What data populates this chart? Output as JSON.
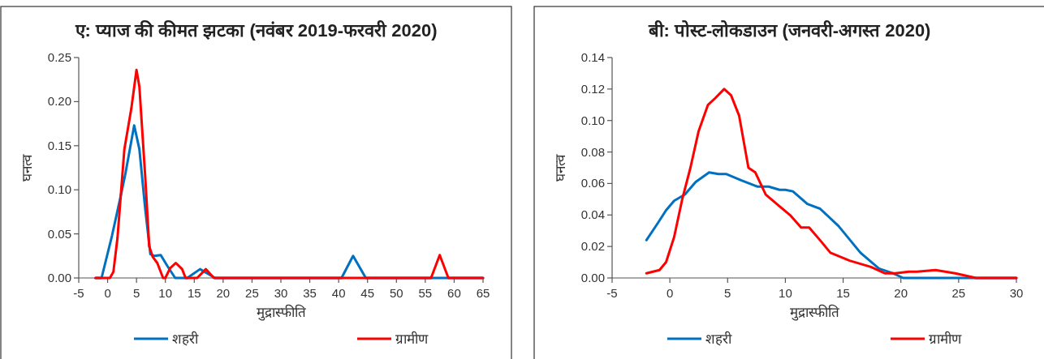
{
  "chart_data": [
    {
      "type": "line",
      "title": "ए: प्याज की कीमत झटका (नवंबर 2019-फरवरी 2020)",
      "xlabel": "मुद्रास्फीति",
      "ylabel": "घनत्व",
      "xlim": [
        -5,
        65
      ],
      "xticks": [
        -5,
        0,
        5,
        10,
        15,
        20,
        25,
        30,
        35,
        40,
        45,
        50,
        55,
        60,
        65
      ],
      "ylim": [
        0,
        0.25
      ],
      "yticks": [
        {
          "value": 0,
          "label": "0.00"
        },
        {
          "value": 0.05,
          "label": "0.05"
        },
        {
          "value": 0.1,
          "label": "0.10"
        },
        {
          "value": 0.15,
          "label": "0.15"
        },
        {
          "value": 0.2,
          "label": "0.20"
        },
        {
          "value": 0.25,
          "label": "0.25"
        }
      ],
      "legend": "bottom",
      "series": [
        {
          "name": "शहरी",
          "color": "#0070c0",
          "x": [
            -2.1,
            -1.05,
            0.76,
            1.7,
            2.4,
            3.1,
            4.6,
            5.5,
            6.5,
            7.4,
            8.1,
            9.2,
            10.3,
            11.7,
            13.8,
            16,
            18.6,
            40.5,
            42.5,
            44.7,
            65
          ],
          "values": [
            0,
            0,
            0.048,
            0.076,
            0.097,
            0.119,
            0.173,
            0.146,
            0.079,
            0.027,
            0.025,
            0.026,
            0.014,
            0,
            0,
            0.01,
            0,
            0,
            0.025,
            0,
            0
          ]
        },
        {
          "name": "ग्रामीण",
          "color": "#ff0000",
          "x": [
            -2.1,
            0.4,
            1.0,
            1.7,
            2.9,
            4.1,
            5.0,
            5.5,
            6.5,
            7.2,
            7.8,
            8.6,
            9.6,
            10.0,
            10.8,
            11.8,
            12.9,
            13.5,
            15.5,
            17,
            18.4,
            56,
            57.5,
            59,
            65
          ],
          "values": [
            0,
            0,
            0.007,
            0.045,
            0.146,
            0.192,
            0.236,
            0.217,
            0.116,
            0.036,
            0.024,
            0.017,
            0,
            0,
            0.011,
            0.017,
            0.01,
            0,
            0,
            0.01,
            0,
            0,
            0.026,
            0,
            0
          ]
        }
      ]
    },
    {
      "type": "line",
      "title": "बी: पोस्ट-लोकडाउन (जनवरी-अगस्त 2020)",
      "xlabel": "मुद्रास्फीति",
      "ylabel": "घनत्व",
      "xlim": [
        -5,
        30
      ],
      "xticks": [
        -5,
        0,
        5,
        10,
        15,
        20,
        25,
        30
      ],
      "ylim": [
        0,
        0.14
      ],
      "yticks": [
        {
          "value": 0,
          "label": "0.00"
        },
        {
          "value": 0.02,
          "label": "0.02"
        },
        {
          "value": 0.04,
          "label": "0.04"
        },
        {
          "value": 0.06,
          "label": "0.06"
        },
        {
          "value": 0.08,
          "label": "0.08"
        },
        {
          "value": 0.1,
          "label": "0.10"
        },
        {
          "value": 0.12,
          "label": "0.12"
        },
        {
          "value": 0.14,
          "label": "0.14"
        }
      ],
      "legend": "bottom",
      "series": [
        {
          "name": "शहरी",
          "color": "#0070c0",
          "x": [
            -2.03,
            -1.03,
            -0.33,
            0.37,
            1.3,
            2.24,
            3.4,
            4.2,
            4.9,
            6.2,
            7.6,
            8.55,
            9.5,
            10,
            10.65,
            11.9,
            13.0,
            14.6,
            16.5,
            18.1,
            19.3,
            20.2,
            30
          ],
          "values": [
            0.024,
            0.035,
            0.043,
            0.049,
            0.053,
            0.061,
            0.067,
            0.066,
            0.066,
            0.062,
            0.058,
            0.058,
            0.056,
            0.056,
            0.055,
            0.047,
            0.044,
            0.033,
            0.016,
            0.006,
            0.003,
            0,
            0
          ]
        },
        {
          "name": "ग्रामीण",
          "color": "#ff0000",
          "x": [
            -2.03,
            -0.9,
            -0.33,
            0.37,
            1.07,
            1.78,
            2.48,
            3.3,
            3.9,
            4.7,
            5.3,
            6.0,
            6.8,
            7.4,
            8.3,
            9.25,
            10.4,
            11.36,
            12.06,
            13.0,
            13.9,
            15.56,
            17.4,
            18.6,
            19.5,
            20.7,
            21.4,
            23.0,
            24.7,
            26.5,
            30
          ],
          "values": [
            0.003,
            0.005,
            0.01,
            0.026,
            0.05,
            0.07,
            0.093,
            0.11,
            0.114,
            0.12,
            0.116,
            0.103,
            0.07,
            0.067,
            0.053,
            0.047,
            0.04,
            0.032,
            0.032,
            0.024,
            0.016,
            0.011,
            0.007,
            0.003,
            0.003,
            0.004,
            0.004,
            0.005,
            0.003,
            0,
            0
          ]
        }
      ]
    }
  ]
}
